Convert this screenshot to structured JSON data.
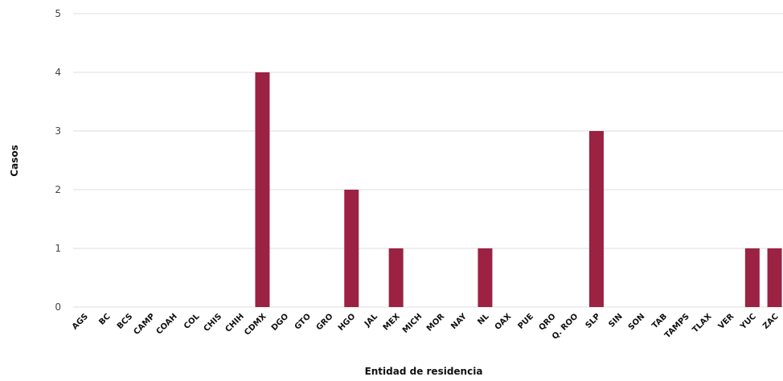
{
  "chart_data": {
    "type": "bar",
    "x_label": "Entidad de residencia",
    "y_label": "Casos",
    "categories": [
      "AGS",
      "BC",
      "BCS",
      "CAMP",
      "COAH",
      "COL",
      "CHIS",
      "CHIH",
      "CDMX",
      "DGO",
      "GTO",
      "GRO",
      "HGO",
      "JAL",
      "MEX",
      "MICH",
      "MOR",
      "NAY",
      "NL",
      "OAX",
      "PUE",
      "QRO",
      "Q. ROO",
      "SLP",
      "SIN",
      "SON",
      "TAB",
      "TAMPS",
      "TLAX",
      "VER",
      "YUC",
      "ZAC"
    ],
    "values": [
      0,
      0,
      0,
      0,
      0,
      0,
      0,
      0,
      4,
      0,
      0,
      0,
      2,
      0,
      1,
      0,
      0,
      0,
      1,
      0,
      0,
      0,
      0,
      3,
      0,
      0,
      0,
      0,
      0,
      0,
      1,
      1
    ],
    "color": "#9b2242",
    "ylim": [
      0,
      5
    ],
    "yticks": [
      0,
      1,
      2,
      3,
      4,
      5
    ],
    "grid": true
  }
}
